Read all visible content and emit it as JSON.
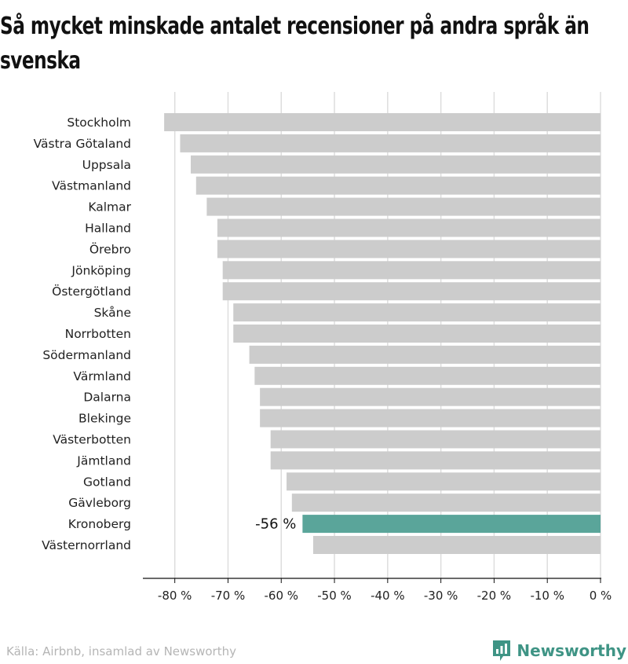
{
  "colors": {
    "bar": "#cccccc",
    "highlight": "#5aa59a",
    "grid": "#dddddd",
    "axis": "#111111",
    "brand": "#3f9485"
  },
  "chart_data": {
    "type": "bar",
    "orientation": "horizontal",
    "title": "Så mycket minskade antalet recensioner på andra språk än svenska",
    "categories": [
      "Stockholm",
      "Västra Götaland",
      "Uppsala",
      "Västmanland",
      "Kalmar",
      "Halland",
      "Örebro",
      "Jönköping",
      "Östergötland",
      "Skåne",
      "Norrbotten",
      "Södermanland",
      "Värmland",
      "Dalarna",
      "Blekinge",
      "Västerbotten",
      "Jämtland",
      "Gotland",
      "Gävleborg",
      "Kronoberg",
      "Västernorrland"
    ],
    "values": [
      -82,
      -79,
      -77,
      -76,
      -74,
      -72,
      -72,
      -71,
      -71,
      -69,
      -69,
      -66,
      -65,
      -64,
      -64,
      -62,
      -62,
      -59,
      -58,
      -56,
      -54
    ],
    "highlight": {
      "category": "Kronoberg",
      "label": "-56 %"
    },
    "xlim": [
      -86,
      0
    ],
    "x_ticks": [
      -80,
      -70,
      -60,
      -50,
      -40,
      -30,
      -20,
      -10,
      0
    ],
    "x_tick_labels": [
      "-80 %",
      "-70 %",
      "-60 %",
      "-50 %",
      "-40 %",
      "-30 %",
      "-20 %",
      "-10 %",
      "0 %"
    ],
    "grid": true,
    "legend": "none"
  },
  "footer": {
    "source": "Källa: Airbnb, insamlad av Newsworthy",
    "brand_name": "Newsworthy",
    "brand_icon": "bar-chart-icon"
  }
}
